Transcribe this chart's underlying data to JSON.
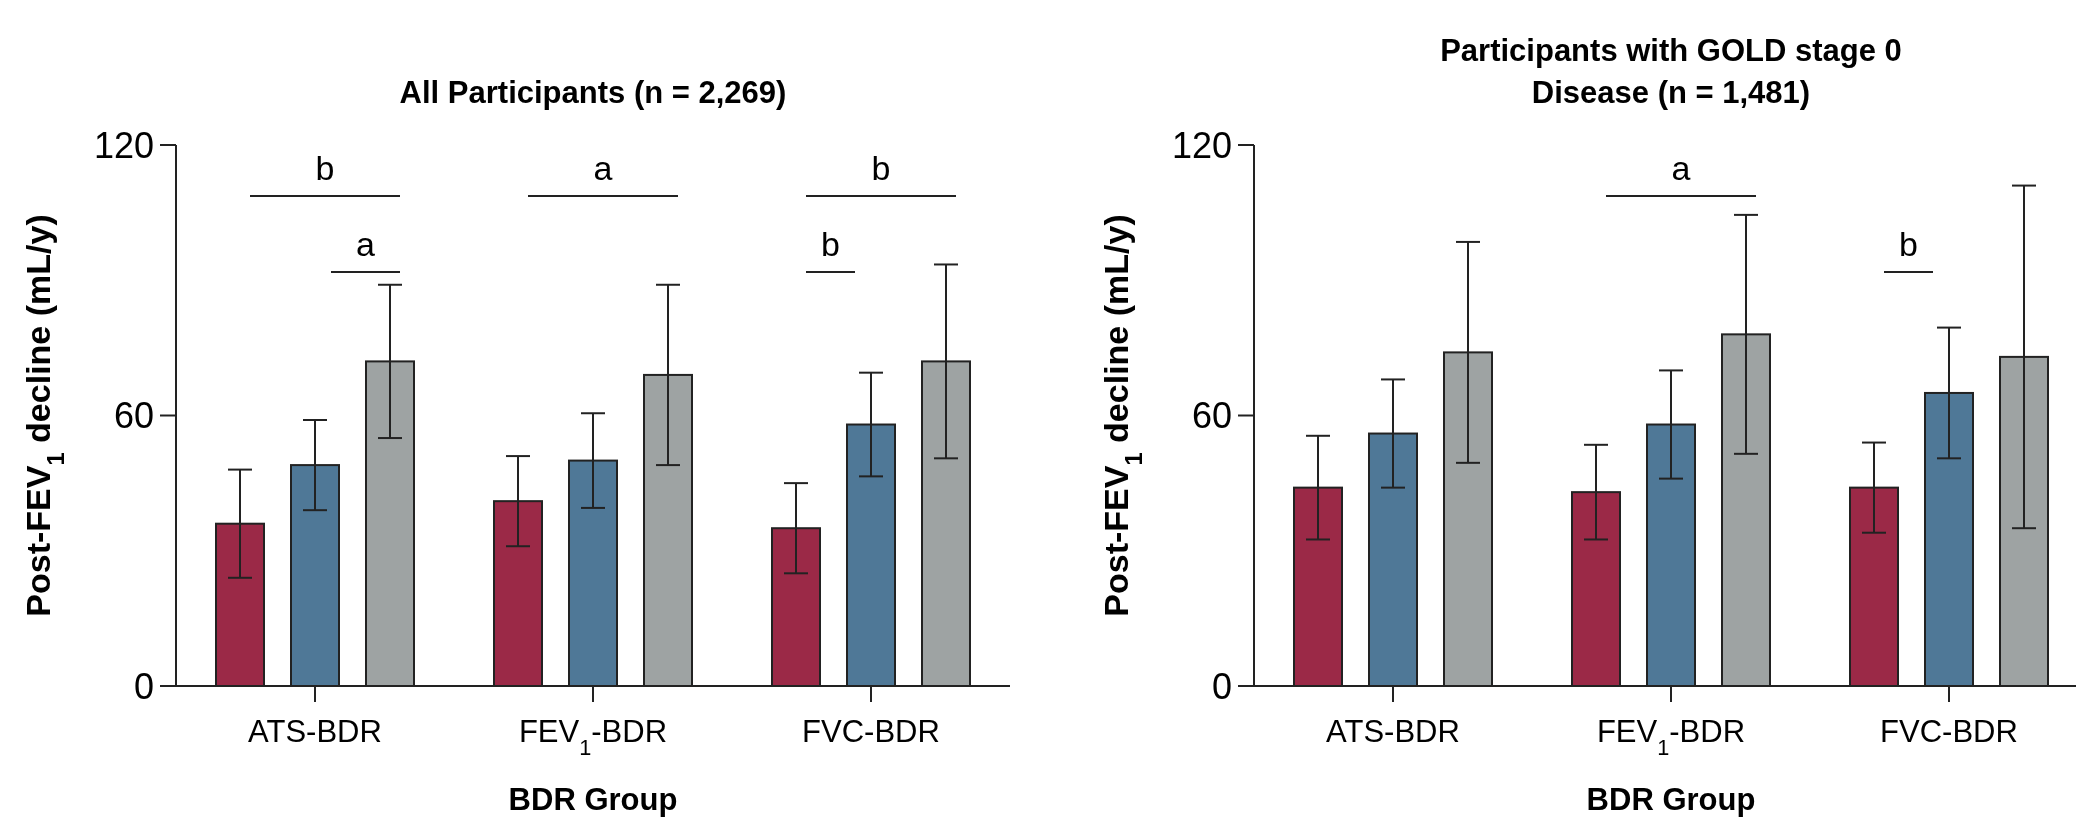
{
  "chart_data": [
    {
      "type": "bar",
      "title": "All Participants (n = 2,269)",
      "xlabel": "BDR Group",
      "ylabel": "Post-FEV$_{1}$ decline (mL/y)",
      "categories": [
        "ATS-BDR",
        "FEV$_{1}$-BDR",
        "FVC-BDR"
      ],
      "series": [
        {
          "color": "#9b2947",
          "values": [
            36,
            41,
            35
          ],
          "errors": [
            12,
            10,
            10
          ]
        },
        {
          "color": "#4f7897",
          "values": [
            49,
            50,
            58
          ],
          "errors": [
            10,
            10.5,
            11.5
          ]
        },
        {
          "color": "#9ea3a3",
          "values": [
            72,
            69,
            72
          ],
          "errors": [
            17,
            20,
            21.5
          ]
        }
      ],
      "ylim": [
        0,
        120
      ],
      "yticks": [
        0,
        60,
        120
      ],
      "grid": false,
      "annotations": [
        "b",
        "a",
        "a",
        "b",
        "b"
      ]
    },
    {
      "type": "bar",
      "title": "Participants with GOLD stage 0 Disease (n = 1,481)",
      "xlabel": "BDR Group",
      "ylabel": "Post-FEV$_{1}$ decline (mL/y)",
      "categories": [
        "ATS-BDR",
        "FEV$_{1}$-BDR",
        "FVC-BDR"
      ],
      "series": [
        {
          "color": "#9b2947",
          "values": [
            44,
            43,
            44
          ],
          "errors": [
            11.5,
            10.5,
            10
          ]
        },
        {
          "color": "#4f7897",
          "values": [
            56,
            58,
            65
          ],
          "errors": [
            12,
            12,
            14.5
          ]
        },
        {
          "color": "#9ea3a3",
          "values": [
            74,
            78,
            73
          ],
          "errors": [
            24.5,
            26.5,
            38
          ]
        }
      ],
      "ylim": [
        0,
        120
      ],
      "yticks": [
        0,
        60,
        120
      ],
      "grid": false,
      "annotations": [
        "a",
        "b"
      ]
    }
  ]
}
